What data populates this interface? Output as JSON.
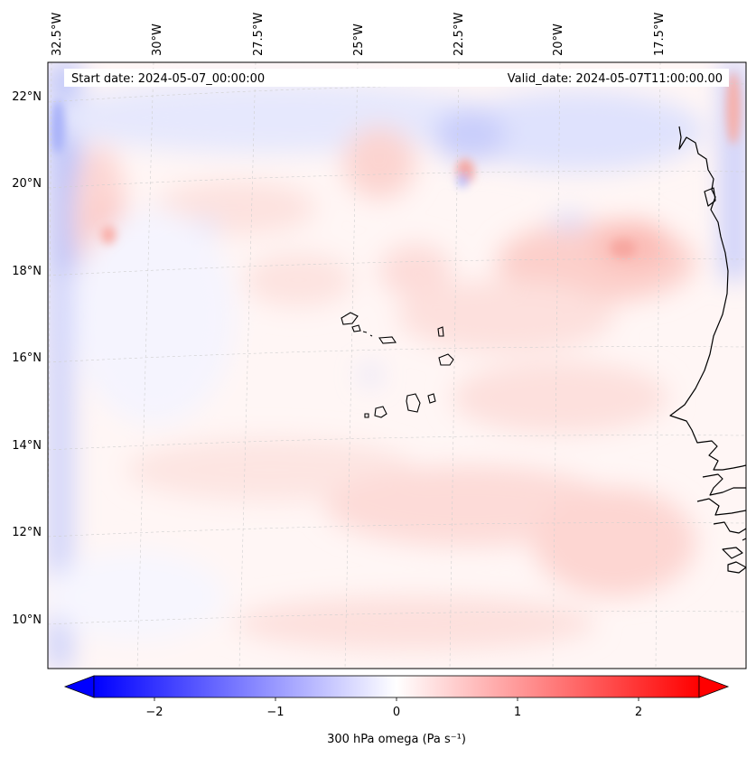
{
  "header": {
    "start_date": "Start date: 2024-05-07_00:00:00",
    "valid_date": "Valid_date: 2024-05-07T11:00:00.00"
  },
  "longitude_labels": [
    "32.5°W",
    "30°W",
    "27.5°W",
    "25°W",
    "22.5°W",
    "20°W",
    "17.5°W"
  ],
  "latitude_labels": [
    "22°N",
    "20°N",
    "18°N",
    "16°N",
    "14°N",
    "12°N",
    "10°N"
  ],
  "colorbar": {
    "ticks": [
      "−2",
      "−1",
      "0",
      "1",
      "2"
    ],
    "label": "300 hPa omega (Pa s⁻¹)",
    "range": [
      -2.5,
      2.5
    ],
    "colormap": "bwr",
    "low_color": "#0000ff",
    "mid_color": "#ffffff",
    "high_color": "#ff0000",
    "extend": "both"
  },
  "map": {
    "projection": "lambert-conformal",
    "extent": {
      "lon": [
        -33,
        -15.5
      ],
      "lat": [
        9,
        22.7
      ]
    },
    "gridlines": true,
    "coastlines": true,
    "regions": [
      "Cabo Verde islands",
      "West African coast"
    ]
  }
}
